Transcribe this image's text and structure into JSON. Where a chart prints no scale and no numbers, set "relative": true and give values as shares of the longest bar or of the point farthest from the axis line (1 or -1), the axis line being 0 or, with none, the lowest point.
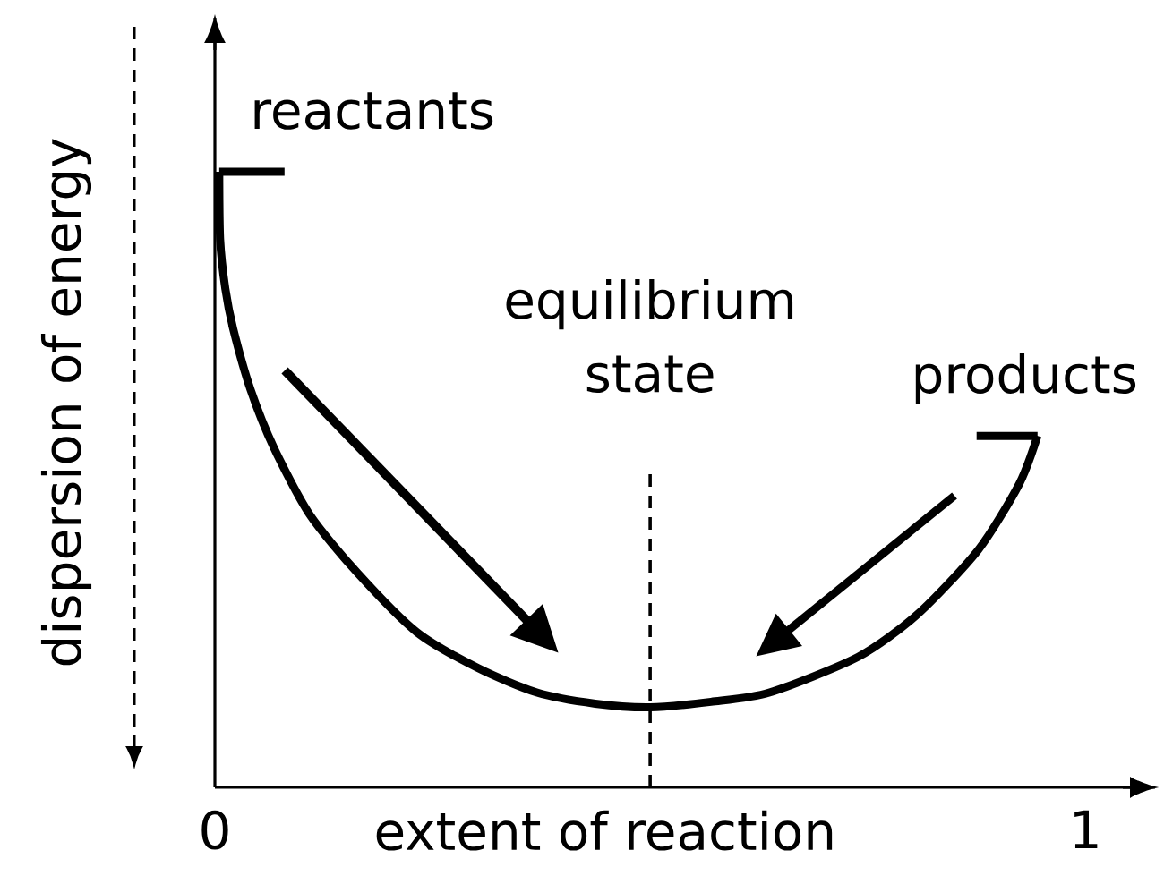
{
  "chart_data": {
    "type": "line",
    "xlabel": "extent of reaction",
    "ylabel": "dispersion of energy",
    "relative": true,
    "xlim": [
      0,
      1.08
    ],
    "xticks": [
      0,
      1
    ],
    "series": [
      {
        "color": "#000000",
        "x": [
          0.005,
          0.006,
          0.012,
          0.021,
          0.041,
          0.068,
          0.109,
          0.164,
          0.232,
          0.302,
          0.37,
          0.437,
          0.5,
          0.57,
          0.637,
          0.739,
          0.807,
          0.877,
          0.924,
          0.945
        ],
        "values": [
          1.0,
          0.89,
          0.81,
          0.745,
          0.646,
          0.551,
          0.443,
          0.348,
          0.252,
          0.194,
          0.154,
          0.136,
          0.13,
          0.139,
          0.154,
          0.212,
          0.281,
          0.386,
          0.493,
          0.571
        ]
      },
      {
        "color": "#000000",
        "x": [
          0.005,
          0.08
        ],
        "values": [
          1.0,
          1.0
        ]
      },
      {
        "color": "#000000",
        "x": [
          0.875,
          0.945
        ],
        "values": [
          0.571,
          0.571
        ]
      }
    ],
    "ref_lines": [
      {
        "axis": "x",
        "value": 0.5,
        "label": "equilibrium state",
        "line_style": "dashed",
        "color": "#000000"
      }
    ],
    "annotations": [
      {
        "text": "reactants",
        "x": 0.04,
        "y": 1.0
      },
      {
        "text": "products",
        "x": 0.93,
        "y": 0.571
      }
    ]
  }
}
